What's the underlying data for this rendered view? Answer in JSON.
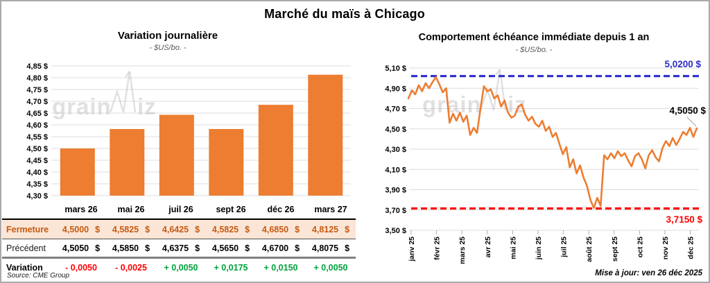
{
  "page": {
    "title": "Marché du maïs à Chicago",
    "source": "Source: CME Group",
    "updated": "Mise à jour: ven 26 déc 2025",
    "watermark": "grainwiz"
  },
  "colors": {
    "orange": "#ED7D31",
    "peach_row": "#FBE5D6",
    "dark_orange_text": "#C55A11",
    "red": "#FF0000",
    "green": "#00A33C",
    "blue": "#2B2BC8",
    "gridline": "#DCDCDC",
    "watermark_gray": "#C8C8C8"
  },
  "chart_data": [
    {
      "type": "bar",
      "title": "Variation journalière",
      "subtitle": "- $US/bo. -",
      "categories": [
        "mars 26",
        "mai 26",
        "juil 26",
        "sept 26",
        "déc 26",
        "mars 27"
      ],
      "values": [
        4.5,
        4.5825,
        4.6425,
        4.5825,
        4.685,
        4.8125
      ],
      "ylim": [
        4.3,
        4.85
      ],
      "ytick_labels": [
        "4,85 $",
        "4,80 $",
        "4,75 $",
        "4,70 $",
        "4,65 $",
        "4,60 $",
        "4,55 $",
        "4,50 $",
        "4,45 $",
        "4,40 $",
        "4,35 $",
        "4,30 $"
      ],
      "bar_color": "#ED7D31",
      "grid": true,
      "legend": "none"
    },
    {
      "type": "line",
      "title": "Comportement échéance immédiate depuis 1 an",
      "subtitle": "- $US/bo. -",
      "x_tick_labels": [
        "janv 25",
        "févr 25",
        "mars 25",
        "avr 25",
        "mai 25",
        "juin 25",
        "juil 25",
        "août 25",
        "sept 25",
        "oct 25",
        "nov 25",
        "déc 25"
      ],
      "ylim": [
        3.5,
        5.1
      ],
      "ytick_labels": [
        "5,10 $",
        "4,90 $",
        "4,70 $",
        "4,50 $",
        "4,30 $",
        "4,10 $",
        "3,90 $",
        "3,70 $",
        "3,50 $"
      ],
      "high_line": {
        "value": 5.02,
        "label": "5,0200 $"
      },
      "low_line": {
        "value": 3.715,
        "label": "3,7150 $"
      },
      "last_point_label": "4,5050 $",
      "last_point_value": 4.505,
      "line_color": "#ED7D31",
      "grid": true,
      "legend": "none",
      "values": [
        4.8,
        4.88,
        4.84,
        4.93,
        4.87,
        4.95,
        4.9,
        4.96,
        5.01,
        4.94,
        4.86,
        4.9,
        4.56,
        4.65,
        4.58,
        4.66,
        4.57,
        4.63,
        4.44,
        4.51,
        4.46,
        4.7,
        4.92,
        4.87,
        4.89,
        4.8,
        4.83,
        4.72,
        4.78,
        4.66,
        4.61,
        4.63,
        4.72,
        4.74,
        4.64,
        4.58,
        4.62,
        4.55,
        4.52,
        4.58,
        4.48,
        4.52,
        4.42,
        4.46,
        4.35,
        4.25,
        4.32,
        4.12,
        4.2,
        4.06,
        4.14,
        4.02,
        3.94,
        3.8,
        3.72,
        3.82,
        3.74,
        4.24,
        4.2,
        4.26,
        4.21,
        4.28,
        4.23,
        4.26,
        4.19,
        4.13,
        4.23,
        4.26,
        4.2,
        4.11,
        4.24,
        4.29,
        4.22,
        4.18,
        4.31,
        4.38,
        4.33,
        4.41,
        4.34,
        4.4,
        4.47,
        4.44,
        4.51,
        4.42,
        4.505
      ]
    }
  ],
  "table": {
    "header": [
      "mars 26",
      "mai 26",
      "juil 26",
      "sept 26",
      "déc 26",
      "mars 27"
    ],
    "unit": "$",
    "rows": [
      {
        "label": "Fermeture",
        "style": "fermeture",
        "values": [
          "4,5000",
          "4,5825",
          "4,6425",
          "4,5825",
          "4,6850",
          "4,8125"
        ]
      },
      {
        "label": "Précédent",
        "style": "precedent",
        "values": [
          "4,5050",
          "4,5850",
          "4,6375",
          "4,5650",
          "4,6700",
          "4,8075"
        ]
      },
      {
        "label": "Variation",
        "style": "variation",
        "values": [
          "- 0,0050",
          "- 0,0025",
          "+ 0,0050",
          "+ 0,0175",
          "+ 0,0150",
          "+ 0,0050"
        ],
        "signs": [
          "neg",
          "neg",
          "pos",
          "pos",
          "pos",
          "pos"
        ]
      }
    ]
  }
}
